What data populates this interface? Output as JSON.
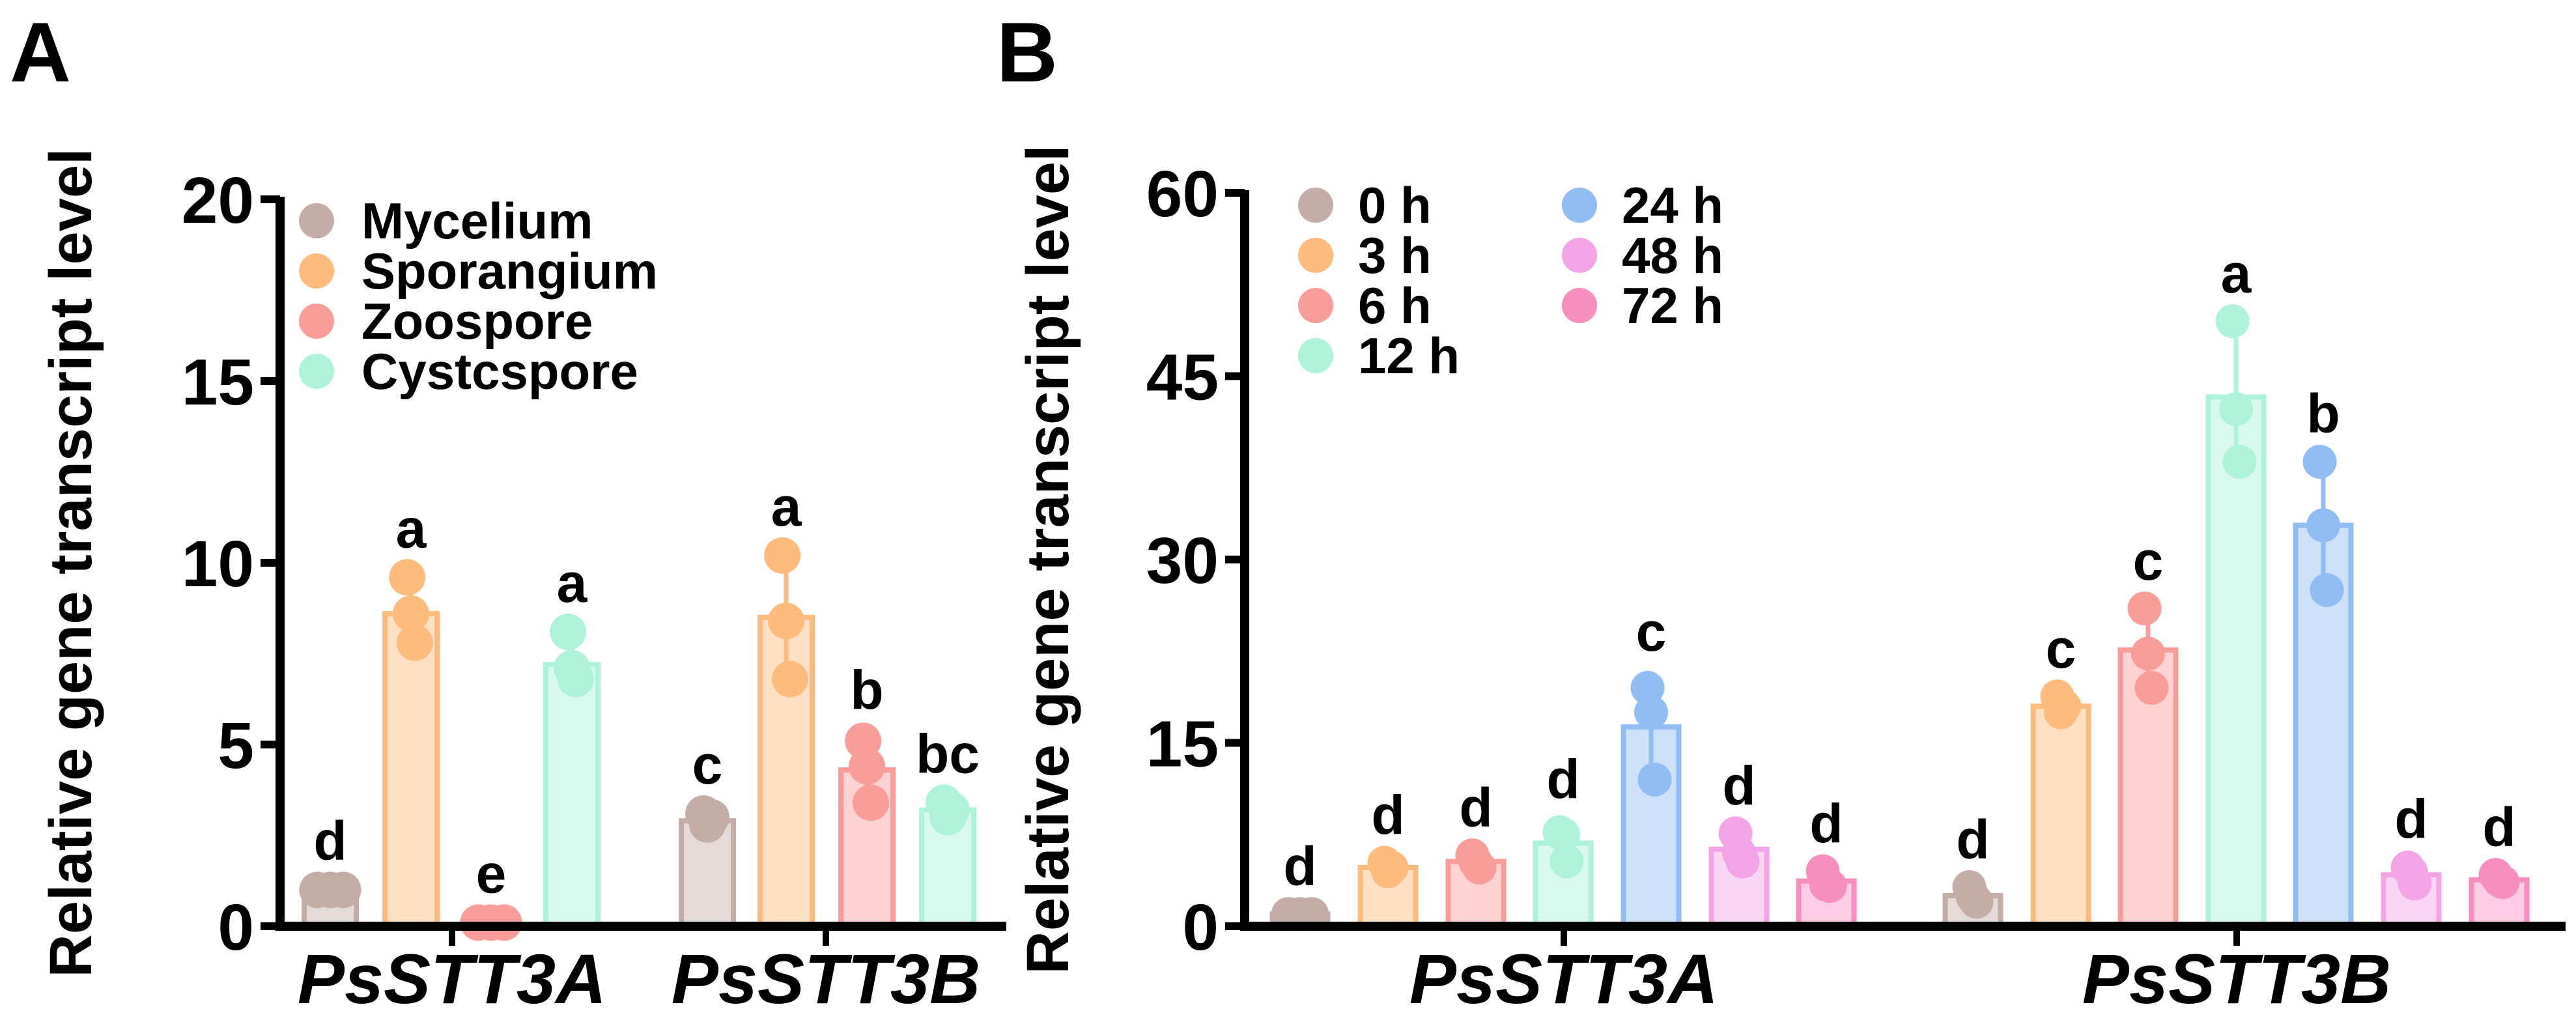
{
  "chart_data": [
    {
      "panel_label": "A",
      "type": "bar",
      "ylabel": "Relative gene transcript level",
      "ylim": [
        0,
        20
      ],
      "yticks": [
        "0",
        "5",
        "10",
        "15",
        "20"
      ],
      "categories": [
        "PsSTT3A",
        "PsSTT3B"
      ],
      "legend_position": "top-left",
      "series": [
        {
          "name": "Mycelium",
          "color": "#c4ada6",
          "means": [
            1.0,
            2.9
          ],
          "points": [
            [
              1.0,
              1.0,
              1.0
            ],
            [
              3.1,
              2.8,
              3.0
            ]
          ],
          "letters": [
            "d",
            "c"
          ]
        },
        {
          "name": "Sporangium",
          "color": "#fdbb7d",
          "means": [
            8.6,
            8.5
          ],
          "points": [
            [
              9.6,
              8.6,
              7.8
            ],
            [
              10.2,
              8.4,
              6.8
            ]
          ],
          "letters": [
            "a",
            "a"
          ]
        },
        {
          "name": "Zoospore",
          "color": "#f99d9b",
          "means": [
            0.1,
            4.3
          ],
          "points": [
            [
              0.1,
              0.1,
              0.1
            ],
            [
              5.1,
              4.4,
              3.4
            ]
          ],
          "letters": [
            "e",
            "b"
          ]
        },
        {
          "name": "Cystcspore",
          "color": "#aef2d9",
          "means": [
            7.2,
            3.2
          ],
          "points": [
            [
              8.1,
              7.1,
              6.8
            ],
            [
              3.4,
              3.0,
              3.2
            ]
          ],
          "letters": [
            "a",
            "bc"
          ]
        }
      ]
    },
    {
      "panel_label": "B",
      "type": "bar",
      "ylabel": "Relative gene transcript level",
      "ylim": [
        0,
        60
      ],
      "yticks": [
        "0",
        "15",
        "30",
        "45",
        "60"
      ],
      "categories": [
        "PsSTT3A",
        "PsSTT3B"
      ],
      "legend_position": "top-left",
      "series": [
        {
          "name": "0 h",
          "color": "#c4ada6",
          "means": [
            1.0,
            2.5
          ],
          "points": [
            [
              1.0,
              1.0,
              1.0
            ],
            [
              3.2,
              2.4,
              2.0
            ]
          ],
          "letters": [
            "d",
            "d"
          ]
        },
        {
          "name": "3 h",
          "color": "#fdbb7d",
          "means": [
            4.8,
            18.0
          ],
          "points": [
            [
              5.2,
              4.5,
              4.8
            ],
            [
              18.8,
              17.5,
              18.0
            ]
          ],
          "letters": [
            "d",
            "c"
          ]
        },
        {
          "name": "6 h",
          "color": "#f99d9b",
          "means": [
            5.3,
            22.6
          ],
          "points": [
            [
              5.8,
              5.2,
              4.8
            ],
            [
              26.0,
              22.3,
              19.5
            ]
          ],
          "letters": [
            "d",
            "c"
          ]
        },
        {
          "name": "12 h",
          "color": "#aef2d9",
          "means": [
            6.8,
            43.3
          ],
          "points": [
            [
              7.7,
              7.5,
              5.3
            ],
            [
              49.5,
              42.3,
              38.0
            ]
          ],
          "letters": [
            "d",
            "a"
          ]
        },
        {
          "name": "24 h",
          "color": "#91bdf2",
          "means": [
            16.3,
            32.8
          ],
          "points": [
            [
              19.5,
              17.5,
              12.0
            ],
            [
              38.0,
              32.8,
              27.5
            ]
          ],
          "letters": [
            "c",
            "b"
          ]
        },
        {
          "name": "48 h",
          "color": "#f3a4e6",
          "means": [
            6.3,
            4.2
          ],
          "points": [
            [
              7.6,
              6.0,
              5.3
            ],
            [
              4.8,
              4.4,
              3.5
            ]
          ],
          "letters": [
            "d",
            "d"
          ]
        },
        {
          "name": "72 h",
          "color": "#f68fbe",
          "means": [
            3.7,
            3.8
          ],
          "points": [
            [
              4.5,
              3.4,
              3.3
            ],
            [
              4.2,
              3.8,
              3.6
            ]
          ],
          "letters": [
            "d",
            "d"
          ]
        }
      ]
    }
  ]
}
